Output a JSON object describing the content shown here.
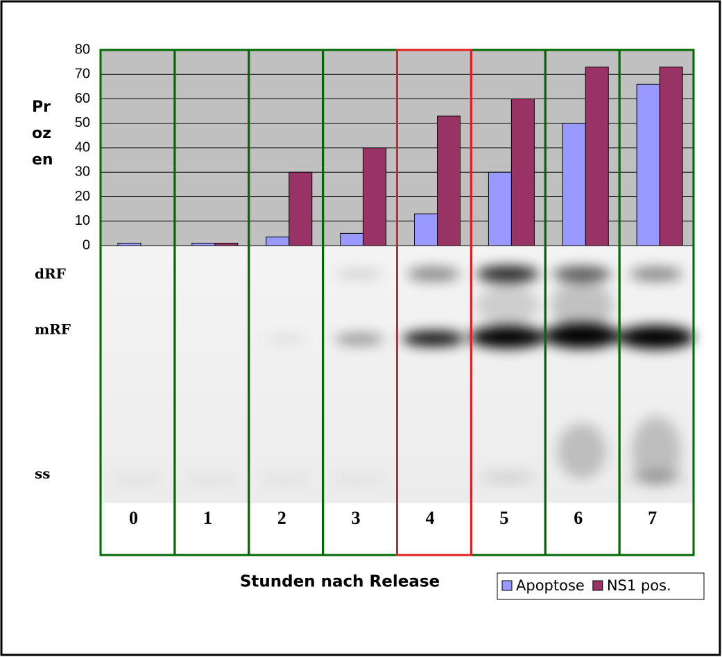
{
  "chart_data": {
    "type": "bar",
    "y_axis_label": "Prozent",
    "x_axis_label": "Stunden nach Release",
    "categories": [
      "0",
      "1",
      "2",
      "3",
      "4",
      "5",
      "6",
      "7"
    ],
    "series": [
      {
        "name": "Apoptose",
        "color": "#9999ff",
        "values": [
          1,
          1,
          3.5,
          5,
          13,
          30,
          50,
          66
        ]
      },
      {
        "name": "NS1 pos.",
        "color": "#993366",
        "values": [
          0,
          1,
          30,
          40,
          53,
          60,
          73,
          73
        ]
      }
    ],
    "ylim": [
      0,
      80
    ],
    "yticks": [
      0,
      10,
      20,
      30,
      40,
      50,
      60,
      70,
      80
    ],
    "grid": true,
    "gel_labels": [
      "dRF",
      "mRF",
      "ss"
    ],
    "highlight_lane": "4",
    "lane_color": "#006600",
    "highlight_color": "#e02020",
    "legend": "bottom-right"
  }
}
